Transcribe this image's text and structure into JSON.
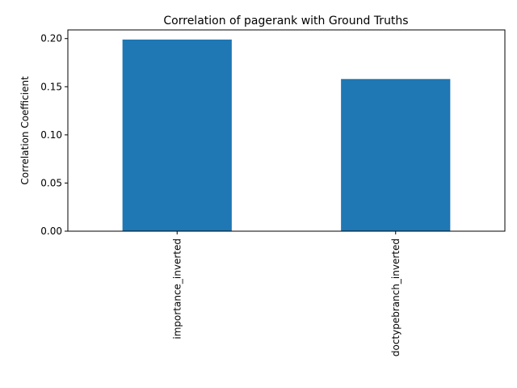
{
  "chart_data": {
    "type": "bar",
    "title": "Correlation of pagerank with Ground Truths",
    "xlabel": "",
    "ylabel": "Correlation Coefficient",
    "categories": [
      "importance_inverted",
      "doctypebranch_inverted"
    ],
    "values": [
      0.199,
      0.158
    ],
    "ylim": [
      0,
      0.209
    ],
    "yticks": [
      0.0,
      0.05,
      0.1,
      0.15,
      0.2
    ],
    "ytick_labels": [
      "0.00",
      "0.05",
      "0.10",
      "0.15",
      "0.20"
    ],
    "bar_color": "#1f77b4",
    "grid": false,
    "legend": "none"
  }
}
